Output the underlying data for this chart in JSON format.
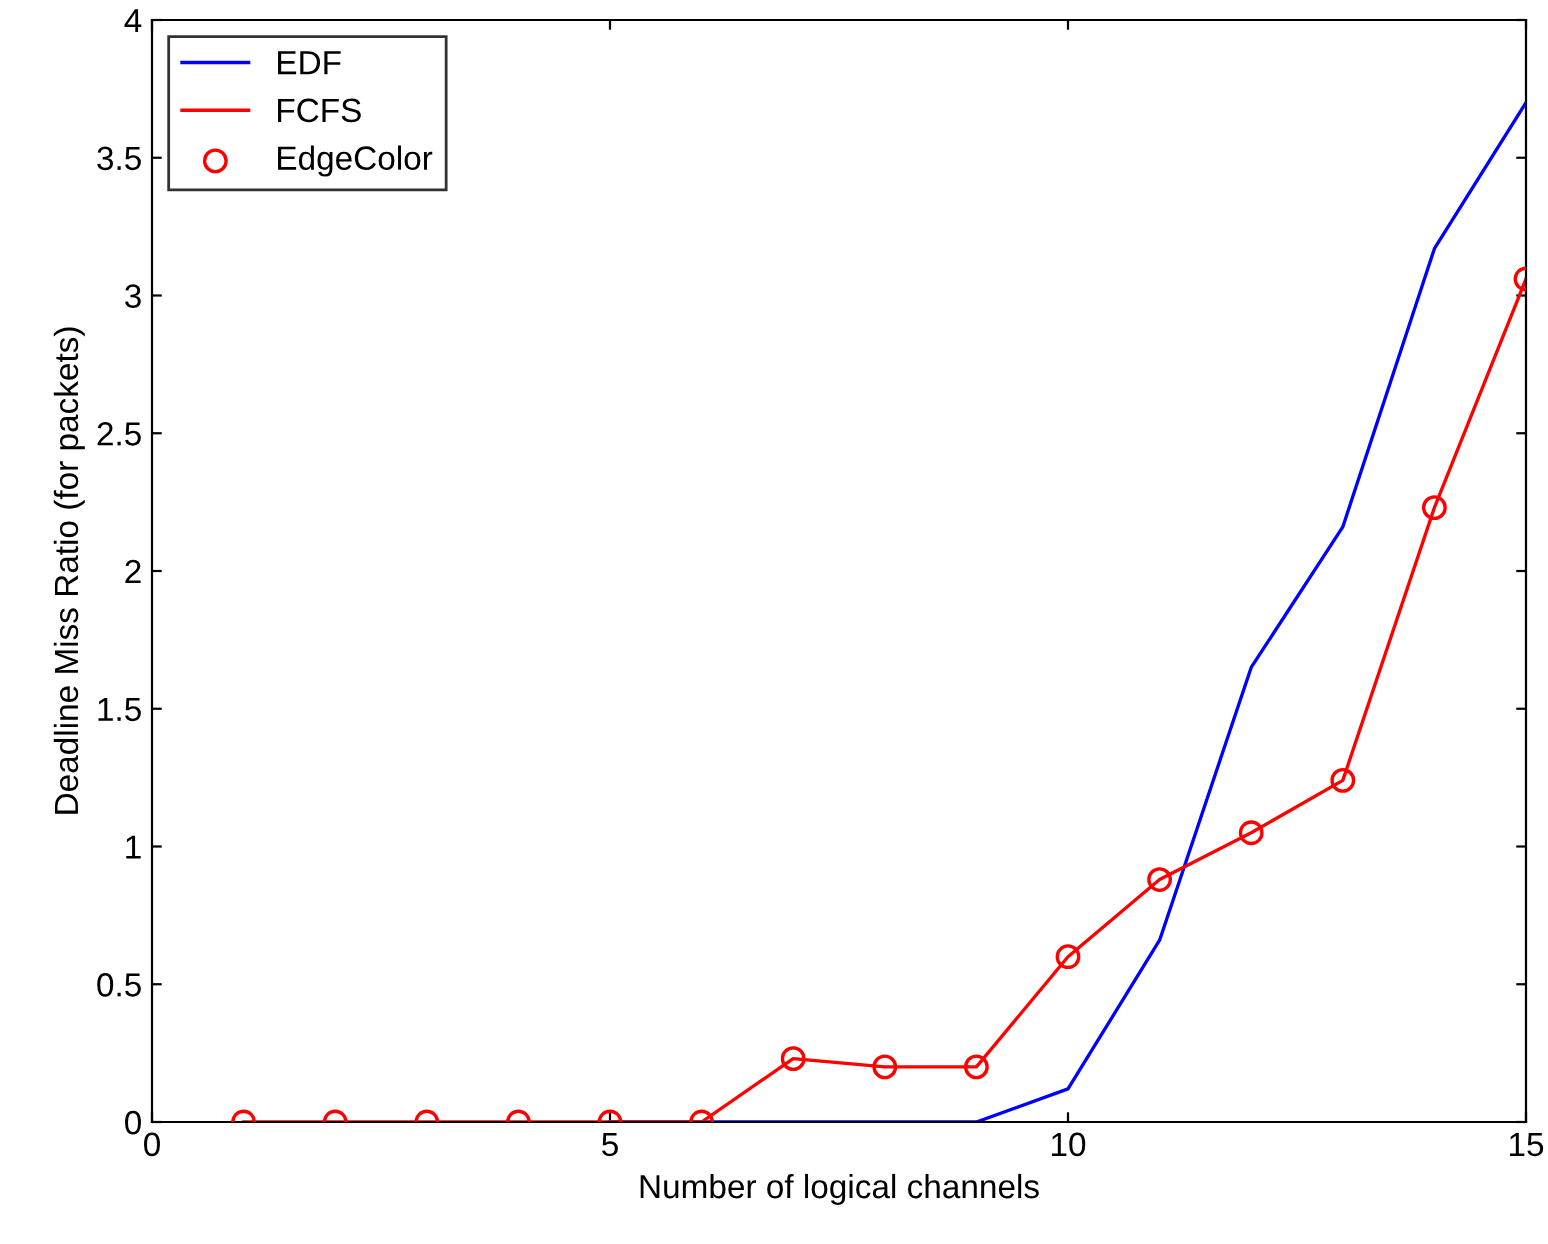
{
  "chart_data": {
    "type": "line",
    "xlabel": "Number of logical channels",
    "ylabel": "Deadline Miss Ratio (for packets)",
    "x": [
      1,
      2,
      3,
      4,
      5,
      6,
      7,
      8,
      9,
      10,
      11,
      12,
      13,
      14,
      15
    ],
    "series": [
      {
        "name": "EDF",
        "color": "#0000ff",
        "values": [
          null,
          null,
          null,
          null,
          0,
          0,
          0,
          0,
          0,
          0.12,
          0.66,
          1.65,
          2.16,
          3.17,
          3.7
        ]
      },
      {
        "name": "FCFS",
        "color": "#ff0000",
        "values": [
          0,
          0,
          0,
          0,
          0,
          0,
          0.23,
          0.2,
          0.2,
          0.6,
          0.88,
          1.05,
          1.24,
          2.23,
          3.06
        ]
      },
      {
        "name": "EdgeColor",
        "type": "scatter",
        "marker": "circle",
        "color": "#ff0000",
        "values": [
          0,
          0,
          0,
          0,
          0,
          0,
          0.23,
          0.2,
          0.2,
          0.6,
          0.88,
          1.05,
          1.24,
          2.23,
          3.06
        ]
      }
    ],
    "xlim": [
      0,
      15
    ],
    "ylim": [
      0,
      4
    ],
    "xticks": [
      0,
      5,
      10,
      15
    ],
    "yticks": [
      0,
      0.5,
      1,
      1.5,
      2,
      2.5,
      3,
      3.5,
      4
    ],
    "grid": false,
    "legend": "top left"
  }
}
